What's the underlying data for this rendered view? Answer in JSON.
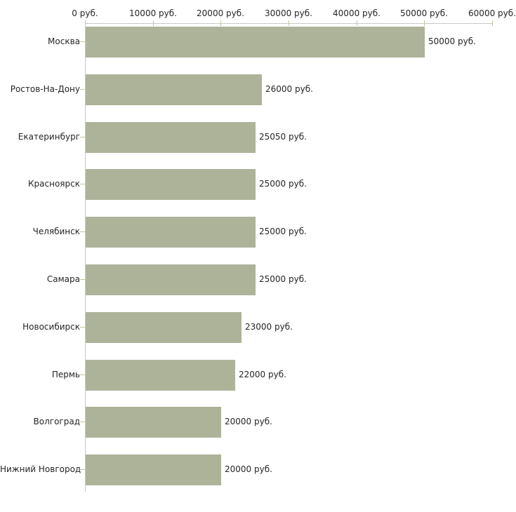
{
  "chart_data": {
    "type": "bar",
    "orientation": "horizontal",
    "title": "",
    "categories": [
      "Москва",
      "Ростов-На-Дону",
      "Екатеринбург",
      "Красноярск",
      "Челябинск",
      "Самара",
      "Новосибирск",
      "Пермь",
      "Волгоград",
      "Нижний Новгород"
    ],
    "values": [
      50000,
      26000,
      25050,
      25000,
      25000,
      25000,
      23000,
      22000,
      20000,
      20000
    ],
    "value_labels": [
      "50000 руб.",
      "26000 руб.",
      "25050 руб.",
      "25000 руб.",
      "25000 руб.",
      "25000 руб.",
      "23000 руб.",
      "22000 руб.",
      "20000 руб.",
      "20000 руб."
    ],
    "x_axis": {
      "position": "top",
      "min": 0,
      "max": 60000,
      "ticks": [
        0,
        10000,
        20000,
        30000,
        40000,
        50000,
        60000
      ],
      "tick_labels": [
        "0 руб.",
        "10000 руб.",
        "20000 руб.",
        "30000 руб.",
        "40000 руб.",
        "50000 руб.",
        "60000 руб."
      ]
    },
    "legend": "none",
    "grid": "off",
    "colors": {
      "bar": "#acb399",
      "axis_line": "#c9c9c9",
      "tick": "#c5c5a0",
      "text": "#252525",
      "background": "#ffffff"
    }
  }
}
